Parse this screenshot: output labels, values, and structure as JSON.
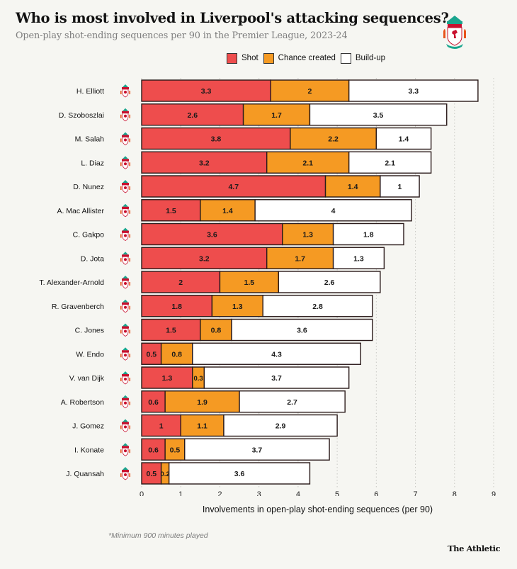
{
  "header": {
    "title": "Who is most involved in Liverpool's attacking sequences?",
    "subtitle": "Open-play shot-ending sequences per 90 in the Premier League, 2023-24",
    "crest_icon": "liverpool-crest-icon"
  },
  "footer": {
    "footnote": "*Minimum 900 minutes played",
    "brand": "The Athletic"
  },
  "colors": {
    "shot": "#ee4d4d",
    "chance_created": "#f59a23",
    "build_up": "#ffffff",
    "background": "#f6f6f2",
    "bar_outline": "#2a1a1a"
  },
  "chart_data": {
    "type": "bar",
    "orientation": "horizontal",
    "stacked": true,
    "title": "Who is most involved in Liverpool's attacking sequences?",
    "subtitle": "Open-play shot-ending sequences per 90 in the Premier League, 2023-24",
    "xlabel": "Involvements in open-play shot-ending sequences (per 90)",
    "ylabel": "",
    "xlim": [
      0,
      9
    ],
    "xticks": [
      0,
      1,
      2,
      3,
      4,
      5,
      6,
      7,
      8,
      9
    ],
    "grid": "vertical-dotted",
    "legend_position": "top-center",
    "categories": [
      "H. Elliott",
      "D. Szoboszlai",
      "M. Salah",
      "L. Diaz",
      "D. Nunez",
      "A. Mac Allister",
      "C. Gakpo",
      "D. Jota",
      "T. Alexander-Arnold",
      "R. Gravenberch",
      "C. Jones",
      "W. Endo",
      "V. van Dijk",
      "A. Robertson",
      "J. Gomez",
      "I. Konate",
      "J. Quansah"
    ],
    "series": [
      {
        "name": "Shot",
        "key": "shot",
        "values": [
          3.3,
          2.6,
          3.8,
          3.2,
          4.7,
          1.5,
          3.6,
          3.2,
          2,
          1.8,
          1.5,
          0.5,
          1.3,
          0.6,
          1,
          0.6,
          0.5
        ]
      },
      {
        "name": "Chance created",
        "key": "chance_created",
        "values": [
          2,
          1.7,
          2.2,
          2.1,
          1.4,
          1.4,
          1.3,
          1.7,
          1.5,
          1.3,
          0.8,
          0.8,
          0.3,
          1.9,
          1.1,
          0.5,
          0.2
        ]
      },
      {
        "name": "Build-up",
        "key": "build_up",
        "values": [
          3.3,
          3.5,
          1.4,
          2.1,
          1,
          4,
          1.8,
          1.3,
          2.6,
          2.8,
          3.6,
          4.3,
          3.7,
          2.7,
          2.9,
          3.7,
          3.6
        ]
      }
    ],
    "footnote": "*Minimum 900 minutes played"
  }
}
